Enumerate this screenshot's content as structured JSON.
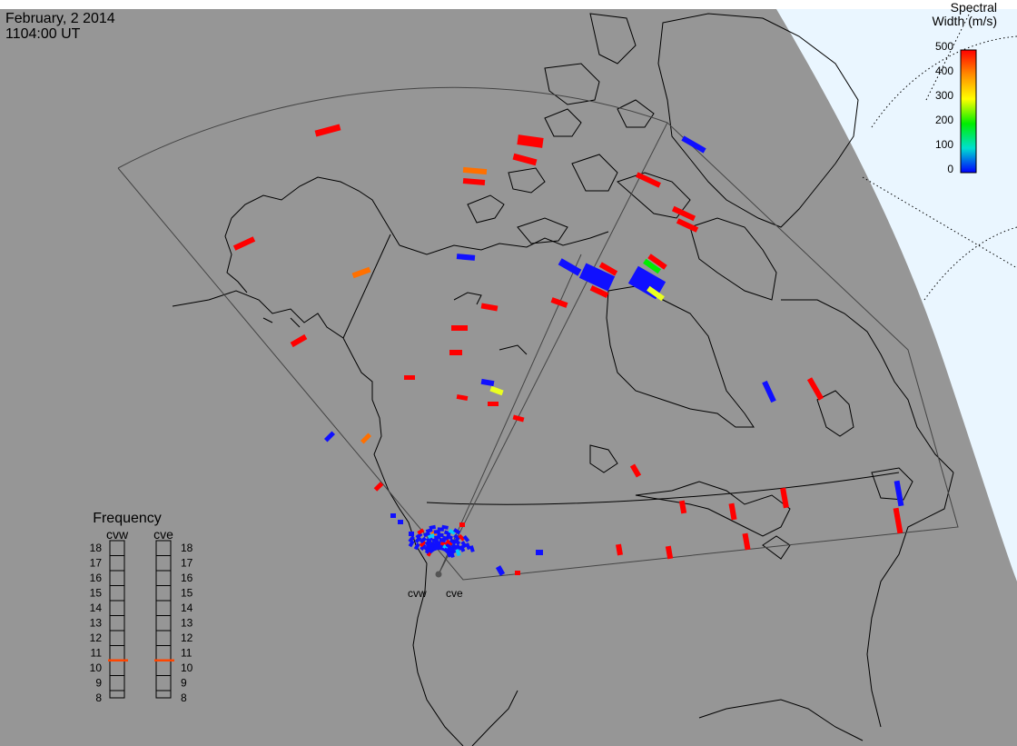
{
  "header": {
    "date": "February, 2 2014",
    "time": "1104:00 UT"
  },
  "colorbar": {
    "title_line1": "Spectral",
    "title_line2": "Width (m/s)",
    "ticks": [
      "500",
      "400",
      "300",
      "200",
      "100",
      "0"
    ],
    "colors": [
      "#ff0000",
      "#ff8c00",
      "#ffff00",
      "#00ee00",
      "#00e0d0",
      "#0000ff"
    ]
  },
  "radars": {
    "west_site": "cvw",
    "east_site": "cve"
  },
  "frequency_panel": {
    "title": "Frequency",
    "col_west": "cvw",
    "col_east": "cve",
    "scale_labels": [
      "18",
      "17",
      "16",
      "15",
      "14",
      "13",
      "12",
      "11",
      "10",
      "9",
      "8"
    ],
    "cvw_marker": 10.5,
    "cve_marker": 10.5,
    "marker_color": "#ff4500"
  },
  "map_colors": {
    "land_background": "#969696",
    "night_side": "#eaf6ff",
    "outline": "#000000"
  }
}
